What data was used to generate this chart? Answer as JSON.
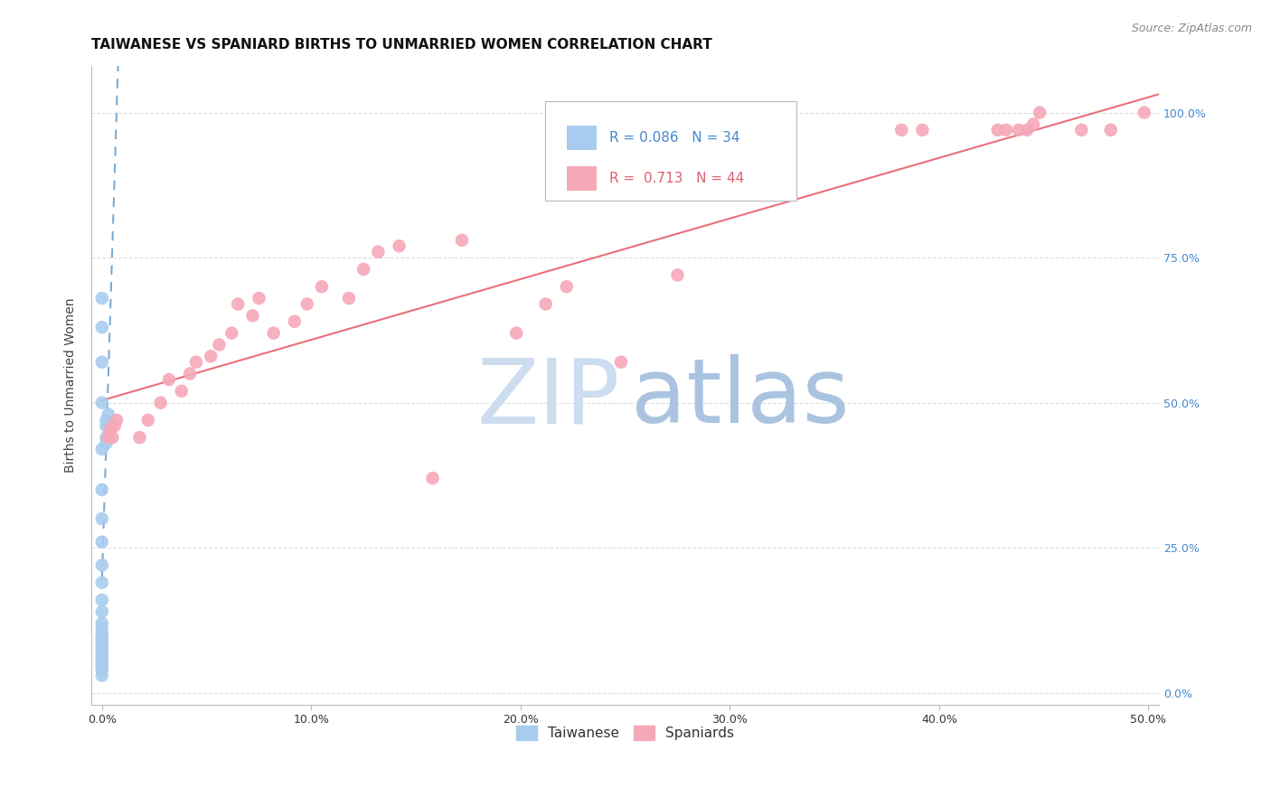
{
  "title": "TAIWANESE VS SPANIARD BIRTHS TO UNMARRIED WOMEN CORRELATION CHART",
  "source": "Source: ZipAtlas.com",
  "ylabel": "Births to Unmarried Women",
  "xlabel_ticks": [
    "0.0%",
    "10.0%",
    "20.0%",
    "30.0%",
    "40.0%",
    "50.0%"
  ],
  "xlabel_vals": [
    0.0,
    0.1,
    0.2,
    0.3,
    0.4,
    0.5
  ],
  "ylabel_ticks": [
    "0.0%",
    "25.0%",
    "50.0%",
    "75.0%",
    "100.0%"
  ],
  "ylabel_vals": [
    0.0,
    0.25,
    0.5,
    0.75,
    1.0
  ],
  "xlim": [
    -0.005,
    0.505
  ],
  "ylim": [
    -0.02,
    1.08
  ],
  "taiwanese_x": [
    0.0,
    0.0,
    0.0,
    0.0,
    0.0,
    0.0,
    0.0,
    0.0,
    0.0,
    0.0,
    0.0,
    0.0,
    0.0,
    0.0,
    0.0,
    0.0,
    0.0,
    0.0,
    0.0,
    0.0,
    0.0,
    0.0,
    0.0,
    0.0,
    0.0,
    0.0,
    0.0,
    0.0,
    0.0,
    0.002,
    0.002,
    0.002,
    0.002,
    0.003
  ],
  "taiwanese_y": [
    0.03,
    0.04,
    0.045,
    0.05,
    0.05,
    0.055,
    0.06,
    0.065,
    0.07,
    0.075,
    0.08,
    0.085,
    0.09,
    0.095,
    0.1,
    0.11,
    0.12,
    0.14,
    0.16,
    0.19,
    0.22,
    0.26,
    0.3,
    0.35,
    0.42,
    0.5,
    0.57,
    0.63,
    0.68,
    0.43,
    0.44,
    0.46,
    0.47,
    0.48
  ],
  "spaniard_x": [
    0.003,
    0.004,
    0.005,
    0.006,
    0.007,
    0.018,
    0.022,
    0.028,
    0.032,
    0.038,
    0.042,
    0.045,
    0.052,
    0.056,
    0.062,
    0.065,
    0.072,
    0.075,
    0.082,
    0.092,
    0.098,
    0.105,
    0.118,
    0.125,
    0.132,
    0.142,
    0.158,
    0.172,
    0.198,
    0.212,
    0.222,
    0.248,
    0.275,
    0.382,
    0.392,
    0.428,
    0.432,
    0.438,
    0.442,
    0.445,
    0.448,
    0.468,
    0.482,
    0.498
  ],
  "spaniard_y": [
    0.44,
    0.455,
    0.44,
    0.46,
    0.47,
    0.44,
    0.47,
    0.5,
    0.54,
    0.52,
    0.55,
    0.57,
    0.58,
    0.6,
    0.62,
    0.67,
    0.65,
    0.68,
    0.62,
    0.64,
    0.67,
    0.7,
    0.68,
    0.73,
    0.76,
    0.77,
    0.37,
    0.78,
    0.62,
    0.67,
    0.7,
    0.57,
    0.72,
    0.97,
    0.97,
    0.97,
    0.97,
    0.97,
    0.97,
    0.98,
    1.0,
    0.97,
    0.97,
    1.0
  ],
  "taiwanese_R": 0.086,
  "taiwanese_N": 34,
  "spaniard_R": 0.713,
  "spaniard_N": 44,
  "taiwanese_color": "#a8ccee",
  "spaniard_color": "#f5a8b8",
  "taiwanese_line_color": "#7aaad4",
  "spaniard_line_color": "#e8707c",
  "legend_blue_text": "#4488cc",
  "legend_pink_text": "#e06070",
  "watermark_zip_color": "#ccddf0",
  "watermark_atlas_color": "#aac4e0",
  "title_fontsize": 11,
  "axis_label_fontsize": 10,
  "tick_fontsize": 9,
  "source_fontsize": 9,
  "right_ylabel_color": "#4488cc",
  "grid_color": "#dddddd"
}
